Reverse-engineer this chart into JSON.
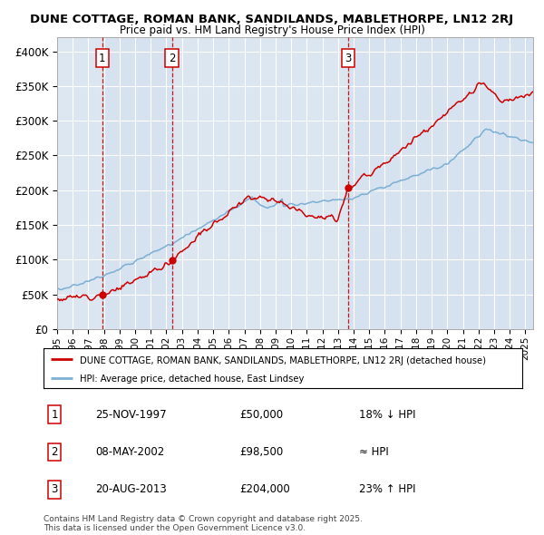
{
  "title1": "DUNE COTTAGE, ROMAN BANK, SANDILANDS, MABLETHORPE, LN12 2RJ",
  "title2": "Price paid vs. HM Land Registry's House Price Index (HPI)",
  "bg_color": "#dce6f1",
  "plot_bg_color": "#dce6f1",
  "red_color": "#cc0000",
  "blue_color": "#7bafd4",
  "sale1_date": "25-NOV-1997",
  "sale1_price": 50000,
  "sale1_label": "18% ↓ HPI",
  "sale2_date": "08-MAY-2002",
  "sale2_price": 98500,
  "sale2_label": "≈ HPI",
  "sale3_date": "20-AUG-2013",
  "sale3_price": 204000,
  "sale3_label": "23% ↑ HPI",
  "sale1_x": 1997.9,
  "sale2_x": 2002.35,
  "sale3_x": 2013.63,
  "legend_line1": "DUNE COTTAGE, ROMAN BANK, SANDILANDS, MABLETHORPE, LN12 2RJ (detached house)",
  "legend_line2": "HPI: Average price, detached house, East Lindsey",
  "copyright_text": "Contains HM Land Registry data © Crown copyright and database right 2025.\nThis data is licensed under the Open Government Licence v3.0.",
  "ylim": [
    0,
    420000
  ],
  "xlim_start": 1995.0,
  "xlim_end": 2025.5,
  "yticks": [
    0,
    50000,
    100000,
    150000,
    200000,
    250000,
    300000,
    350000,
    400000
  ],
  "ytick_labels": [
    "£0",
    "£50K",
    "£100K",
    "£150K",
    "£200K",
    "£250K",
    "£300K",
    "£350K",
    "£400K"
  ],
  "xticks": [
    1995,
    1996,
    1997,
    1998,
    1999,
    2000,
    2001,
    2002,
    2003,
    2004,
    2005,
    2006,
    2007,
    2008,
    2009,
    2010,
    2011,
    2012,
    2013,
    2014,
    2015,
    2016,
    2017,
    2018,
    2019,
    2020,
    2021,
    2022,
    2023,
    2024,
    2025
  ]
}
